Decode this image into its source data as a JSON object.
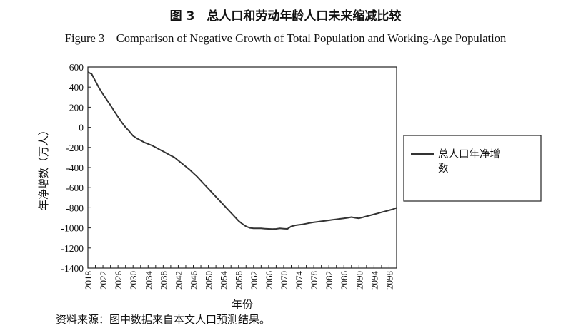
{
  "title_cn": "图 3　总人口和劳动年龄人口未来缩减比较",
  "title_en": "Figure 3　Comparison of Negative Growth of Total Population and Working-Age Population",
  "source_note": "资料来源：图中数据来自本文人口预测结果。",
  "chart_data": {
    "type": "line",
    "xlabel": "年份",
    "ylabel": "年净增数（万人）",
    "xlim": [
      2018,
      2100
    ],
    "ylim": [
      -1400,
      600
    ],
    "x_ticks": [
      2018,
      2022,
      2026,
      2030,
      2034,
      2038,
      2042,
      2046,
      2050,
      2054,
      2058,
      2062,
      2066,
      2070,
      2074,
      2078,
      2082,
      2086,
      2090,
      2094,
      2098
    ],
    "y_ticks": [
      600,
      400,
      200,
      0,
      -200,
      -400,
      -600,
      -800,
      -1000,
      -1200,
      -1400
    ],
    "grid": false,
    "legend_position": "right",
    "series": [
      {
        "name": "总人口年净增数",
        "color": "#333333",
        "x": [
          2018,
          2019,
          2020,
          2021,
          2022,
          2023,
          2024,
          2025,
          2026,
          2027,
          2028,
          2029,
          2030,
          2031,
          2032,
          2033,
          2034,
          2035,
          2036,
          2037,
          2038,
          2039,
          2040,
          2041,
          2042,
          2043,
          2044,
          2045,
          2046,
          2047,
          2048,
          2049,
          2050,
          2051,
          2052,
          2053,
          2054,
          2055,
          2056,
          2057,
          2058,
          2059,
          2060,
          2061,
          2062,
          2063,
          2064,
          2065,
          2066,
          2067,
          2068,
          2069,
          2070,
          2071,
          2072,
          2073,
          2074,
          2075,
          2076,
          2077,
          2078,
          2079,
          2080,
          2081,
          2082,
          2083,
          2084,
          2085,
          2086,
          2087,
          2088,
          2089,
          2090,
          2091,
          2092,
          2093,
          2094,
          2095,
          2096,
          2097,
          2098,
          2099,
          2100
        ],
        "values": [
          550,
          530,
          460,
          390,
          330,
          275,
          220,
          160,
          105,
          50,
          0,
          -40,
          -85,
          -110,
          -130,
          -150,
          -165,
          -180,
          -200,
          -220,
          -240,
          -260,
          -280,
          -300,
          -330,
          -360,
          -390,
          -420,
          -455,
          -490,
          -530,
          -570,
          -610,
          -650,
          -690,
          -730,
          -770,
          -810,
          -850,
          -890,
          -930,
          -960,
          -985,
          -1000,
          -1005,
          -1005,
          -1005,
          -1008,
          -1010,
          -1012,
          -1010,
          -1005,
          -1008,
          -1010,
          -985,
          -975,
          -970,
          -965,
          -958,
          -950,
          -945,
          -940,
          -935,
          -930,
          -925,
          -920,
          -915,
          -910,
          -905,
          -900,
          -893,
          -900,
          -905,
          -895,
          -885,
          -875,
          -865,
          -855,
          -845,
          -835,
          -825,
          -815,
          -800
        ],
        "values_note": "smoothed reading"
      }
    ]
  }
}
